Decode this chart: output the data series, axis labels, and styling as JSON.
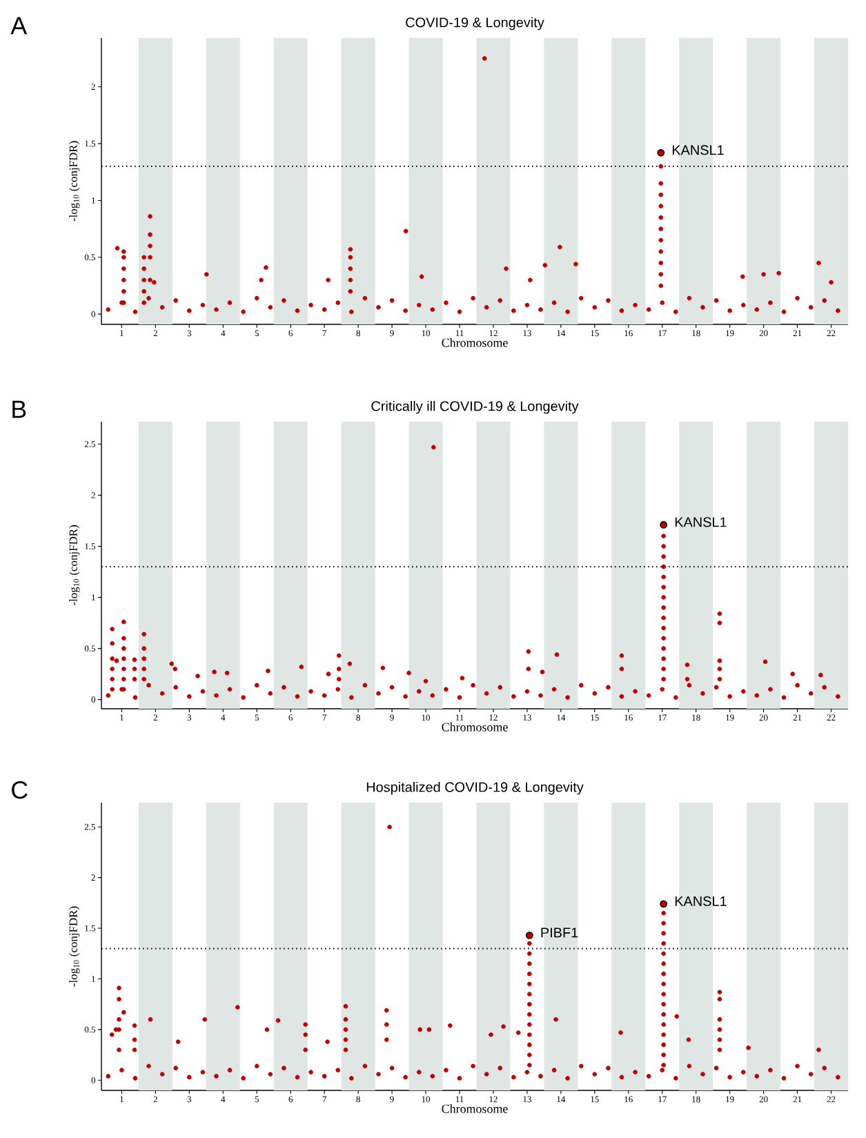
{
  "chart_data": [
    {
      "type": "scatter",
      "title": "COVID-19 & Longevity",
      "xlabel": "Chromosome",
      "ylabel": "-log$_{10}$ (conjFDR)",
      "marker": "circle",
      "xlim": [
        0.4,
        22.5
      ],
      "ylim": [
        -0.09,
        2.43
      ],
      "xticks": [
        1,
        2,
        3,
        4,
        5,
        6,
        7,
        8,
        9,
        10,
        11,
        12,
        13,
        14,
        15,
        16,
        17,
        18,
        19,
        20,
        21,
        22
      ],
      "yticks": [
        0,
        0.5,
        1,
        1.5,
        2
      ],
      "bands": [
        {
          "axis": "x",
          "from": 1.5,
          "to": 2.5,
          "color": "#e0e6e4"
        },
        {
          "axis": "x",
          "from": 3.5,
          "to": 4.5,
          "color": "#e0e6e4"
        },
        {
          "axis": "x",
          "from": 5.5,
          "to": 6.5,
          "color": "#e0e6e4"
        },
        {
          "axis": "x",
          "from": 7.5,
          "to": 8.5,
          "color": "#e0e6e4"
        },
        {
          "axis": "x",
          "from": 9.5,
          "to": 10.5,
          "color": "#e0e6e4"
        },
        {
          "axis": "x",
          "from": 11.5,
          "to": 12.5,
          "color": "#e0e6e4"
        },
        {
          "axis": "x",
          "from": 13.5,
          "to": 14.5,
          "color": "#e0e6e4"
        },
        {
          "axis": "x",
          "from": 15.5,
          "to": 16.5,
          "color": "#e0e6e4"
        },
        {
          "axis": "x",
          "from": 17.5,
          "to": 18.5,
          "color": "#e0e6e4"
        },
        {
          "axis": "x",
          "from": 19.5,
          "to": 20.5,
          "color": "#e0e6e4"
        },
        {
          "axis": "x",
          "from": 21.5,
          "to": 22.5,
          "color": "#e0e6e4"
        }
      ],
      "ref_lines": [
        {
          "axis": "y",
          "value": 1.3,
          "line_style": "dotted",
          "color": "#000000"
        }
      ],
      "annotations": [
        "A",
        {
          "text": "KANSL1",
          "x": 16.96,
          "y": 1.42
        }
      ],
      "series": [
        {
          "color": "#c00000",
          "x": [
            0.6,
            1,
            1.4,
            1.8,
            2.2,
            2.6,
            3,
            3.4,
            3.8,
            4.2,
            4.6,
            5,
            5.4,
            5.8,
            6.2,
            6.6,
            7,
            7.4,
            7.8,
            8.2,
            8.6,
            9,
            9.4,
            9.8,
            10.2,
            10.6,
            11,
            11.4,
            11.8,
            12.2,
            12.6,
            13,
            13.4,
            13.8,
            14.2,
            14.6,
            15,
            15.4,
            15.8,
            16.2,
            16.6,
            17,
            17.4,
            17.8,
            18.2,
            18.6,
            19,
            19.4,
            19.8,
            20.2,
            20.6,
            21,
            21.4,
            21.8,
            22.2
          ],
          "values": [
            0.04,
            0.1,
            0.02,
            0.14,
            0.06,
            0.12,
            0.03,
            0.08,
            0.04,
            0.1,
            0.02,
            0.14,
            0.06,
            0.12,
            0.03,
            0.08,
            0.04,
            0.1,
            0.02,
            0.14,
            0.06,
            0.12,
            0.03,
            0.08,
            0.04,
            0.1,
            0.02,
            0.14,
            0.06,
            0.12,
            0.03,
            0.08,
            0.04,
            0.1,
            0.02,
            0.14,
            0.06,
            0.12,
            0.03,
            0.08,
            0.04,
            0.1,
            0.02,
            0.14,
            0.06,
            0.12,
            0.03,
            0.08,
            0.04,
            0.1,
            0.02,
            0.14,
            0.06,
            0.12,
            0.03
          ]
        },
        {
          "color": "#c00000",
          "x": [
            0.87,
            1.06,
            1.06,
            1.06,
            1.06,
            1.06,
            1.06,
            1.66,
            1.66,
            1.66,
            1.66,
            1.66,
            1.84,
            1.84,
            1.84,
            1.84,
            1.84,
            1.96,
            3.51,
            5.13,
            5.27,
            7.11,
            7.77,
            7.77,
            7.77,
            7.77,
            7.77,
            9.41,
            9.88,
            11.74,
            12.38,
            13.09,
            13.53,
            13.97,
            14.44,
            16.96,
            16.96,
            16.96,
            16.96,
            16.96,
            16.96,
            16.96,
            16.96,
            16.96,
            16.96,
            16.96,
            19.38,
            20,
            20.45,
            21.63,
            22
          ],
          "values": [
            0.58,
            0.1,
            0.2,
            0.3,
            0.4,
            0.5,
            0.55,
            0.1,
            0.2,
            0.3,
            0.4,
            0.5,
            0.3,
            0.5,
            0.6,
            0.7,
            0.86,
            0.28,
            0.35,
            0.3,
            0.41,
            0.3,
            0.2,
            0.3,
            0.4,
            0.5,
            0.57,
            0.73,
            0.33,
            2.25,
            0.4,
            0.3,
            0.43,
            0.59,
            0.44,
            1.3,
            1.15,
            1.05,
            0.95,
            0.85,
            0.75,
            0.65,
            0.55,
            0.45,
            0.35,
            0.25,
            0.33,
            0.35,
            0.36,
            0.45,
            0.28
          ]
        },
        {
          "color": "#c00000",
          "x": [
            16.96
          ],
          "values": [
            1.42
          ]
        }
      ]
    },
    {
      "type": "scatter",
      "title": "Critically ill COVID-19 & Longevity",
      "xlabel": "Chromosome",
      "ylabel": "-log$_{10}$ (conjFDR)",
      "marker": "circle",
      "xlim": [
        0.4,
        22.5
      ],
      "ylim": [
        -0.09,
        2.72
      ],
      "xticks": [
        1,
        2,
        3,
        4,
        5,
        6,
        7,
        8,
        9,
        10,
        11,
        12,
        13,
        14,
        15,
        16,
        17,
        18,
        19,
        20,
        21,
        22
      ],
      "yticks": [
        0,
        0.5,
        1,
        1.5,
        2,
        2.5
      ],
      "bands": [
        {
          "axis": "x",
          "from": 1.5,
          "to": 2.5,
          "color": "#e0e6e4"
        },
        {
          "axis": "x",
          "from": 3.5,
          "to": 4.5,
          "color": "#e0e6e4"
        },
        {
          "axis": "x",
          "from": 5.5,
          "to": 6.5,
          "color": "#e0e6e4"
        },
        {
          "axis": "x",
          "from": 7.5,
          "to": 8.5,
          "color": "#e0e6e4"
        },
        {
          "axis": "x",
          "from": 9.5,
          "to": 10.5,
          "color": "#e0e6e4"
        },
        {
          "axis": "x",
          "from": 11.5,
          "to": 12.5,
          "color": "#e0e6e4"
        },
        {
          "axis": "x",
          "from": 13.5,
          "to": 14.5,
          "color": "#e0e6e4"
        },
        {
          "axis": "x",
          "from": 15.5,
          "to": 16.5,
          "color": "#e0e6e4"
        },
        {
          "axis": "x",
          "from": 17.5,
          "to": 18.5,
          "color": "#e0e6e4"
        },
        {
          "axis": "x",
          "from": 19.5,
          "to": 20.5,
          "color": "#e0e6e4"
        },
        {
          "axis": "x",
          "from": 21.5,
          "to": 22.5,
          "color": "#e0e6e4"
        }
      ],
      "ref_lines": [
        {
          "axis": "y",
          "value": 1.3,
          "line_style": "dotted",
          "color": "#000000"
        }
      ],
      "annotations": [
        "B",
        {
          "text": "KANSL1",
          "x": 17.04,
          "y": 1.71
        }
      ],
      "series": [
        {
          "color": "#c00000",
          "x": [
            0.6,
            1,
            1.4,
            1.8,
            2.2,
            2.6,
            3,
            3.4,
            3.8,
            4.2,
            4.6,
            5,
            5.4,
            5.8,
            6.2,
            6.6,
            7,
            7.4,
            7.8,
            8.2,
            8.6,
            9,
            9.4,
            9.8,
            10.2,
            10.6,
            11,
            11.4,
            11.8,
            12.2,
            12.6,
            13,
            13.4,
            13.8,
            14.2,
            14.6,
            15,
            15.4,
            15.8,
            16.2,
            16.6,
            17,
            17.4,
            17.8,
            18.2,
            18.6,
            19,
            19.4,
            19.8,
            20.2,
            20.6,
            21,
            21.4,
            21.8,
            22.2
          ],
          "values": [
            0.04,
            0.1,
            0.02,
            0.14,
            0.06,
            0.12,
            0.03,
            0.08,
            0.04,
            0.1,
            0.02,
            0.14,
            0.06,
            0.12,
            0.03,
            0.08,
            0.04,
            0.1,
            0.02,
            0.14,
            0.06,
            0.12,
            0.03,
            0.08,
            0.04,
            0.1,
            0.02,
            0.14,
            0.06,
            0.12,
            0.03,
            0.08,
            0.04,
            0.1,
            0.02,
            0.14,
            0.06,
            0.12,
            0.03,
            0.08,
            0.04,
            0.1,
            0.02,
            0.14,
            0.06,
            0.12,
            0.03,
            0.08,
            0.04,
            0.1,
            0.02,
            0.14,
            0.06,
            0.12,
            0.03
          ]
        },
        {
          "color": "#c00000",
          "x": [
            0.72,
            0.72,
            0.72,
            0.72,
            0.72,
            0.72,
            0.85,
            1.06,
            1.06,
            1.06,
            1.06,
            1.06,
            1.06,
            1.06,
            1.38,
            1.38,
            1.38,
            1.66,
            1.66,
            1.66,
            1.66,
            1.66,
            2.48,
            2.58,
            3.25,
            3.74,
            4.12,
            5.33,
            6.32,
            7.12,
            7.43,
            7.43,
            7.43,
            7.75,
            8.73,
            9.5,
            10,
            10.23,
            11.08,
            13.04,
            13.04,
            13.45,
            13.88,
            15.8,
            15.8,
            17.04,
            17.04,
            17.04,
            17.04,
            17.04,
            17.04,
            17.04,
            17.04,
            17.04,
            17.04,
            17.04,
            17.04,
            17.04,
            17.04,
            17.04,
            17.74,
            17.74,
            18.7,
            18.7,
            18.7,
            18.7,
            18.7,
            20.05,
            20.86,
            21.69
          ],
          "values": [
            0.1,
            0.2,
            0.3,
            0.4,
            0.55,
            0.69,
            0.38,
            0.1,
            0.2,
            0.3,
            0.4,
            0.5,
            0.6,
            0.76,
            0.2,
            0.3,
            0.39,
            0.2,
            0.3,
            0.4,
            0.5,
            0.64,
            0.35,
            0.3,
            0.23,
            0.27,
            0.26,
            0.28,
            0.32,
            0.25,
            0.2,
            0.3,
            0.43,
            0.35,
            0.31,
            0.26,
            0.18,
            2.47,
            0.21,
            0.3,
            0.47,
            0.27,
            0.44,
            0.3,
            0.43,
            1.6,
            1.5,
            1.4,
            1.3,
            1.2,
            1.1,
            1.0,
            0.9,
            0.8,
            0.7,
            0.6,
            0.5,
            0.4,
            0.3,
            0.2,
            0.2,
            0.34,
            0.2,
            0.3,
            0.38,
            0.75,
            0.84,
            0.37,
            0.25,
            0.24
          ]
        },
        {
          "color": "#c00000",
          "x": [
            17.04
          ],
          "values": [
            1.71
          ]
        }
      ]
    },
    {
      "type": "scatter",
      "title": "Hospitalized COVID-19 & Longevity",
      "xlabel": "Chromosome",
      "ylabel": "-log$_{10}$ (conjFDR)",
      "marker": "circle",
      "xlim": [
        0.4,
        22.5
      ],
      "ylim": [
        -0.1,
        2.74
      ],
      "xticks": [
        1,
        2,
        3,
        4,
        5,
        6,
        7,
        8,
        9,
        10,
        11,
        12,
        13,
        14,
        15,
        16,
        17,
        18,
        19,
        20,
        21,
        22
      ],
      "yticks": [
        0,
        0.5,
        1,
        1.5,
        2,
        2.5
      ],
      "bands": [
        {
          "axis": "x",
          "from": 1.5,
          "to": 2.5,
          "color": "#e0e6e4"
        },
        {
          "axis": "x",
          "from": 3.5,
          "to": 4.5,
          "color": "#e0e6e4"
        },
        {
          "axis": "x",
          "from": 5.5,
          "to": 6.5,
          "color": "#e0e6e4"
        },
        {
          "axis": "x",
          "from": 7.5,
          "to": 8.5,
          "color": "#e0e6e4"
        },
        {
          "axis": "x",
          "from": 9.5,
          "to": 10.5,
          "color": "#e0e6e4"
        },
        {
          "axis": "x",
          "from": 11.5,
          "to": 12.5,
          "color": "#e0e6e4"
        },
        {
          "axis": "x",
          "from": 13.5,
          "to": 14.5,
          "color": "#e0e6e4"
        },
        {
          "axis": "x",
          "from": 15.5,
          "to": 16.5,
          "color": "#e0e6e4"
        },
        {
          "axis": "x",
          "from": 17.5,
          "to": 18.5,
          "color": "#e0e6e4"
        },
        {
          "axis": "x",
          "from": 19.5,
          "to": 20.5,
          "color": "#e0e6e4"
        },
        {
          "axis": "x",
          "from": 21.5,
          "to": 22.5,
          "color": "#e0e6e4"
        }
      ],
      "ref_lines": [
        {
          "axis": "y",
          "value": 1.3,
          "line_style": "dotted",
          "color": "#000000"
        }
      ],
      "annotations": [
        "C",
        {
          "text": "PIBF1",
          "x": 13.07,
          "y": 1.43
        },
        {
          "text": "KANSL1",
          "x": 17.04,
          "y": 1.74
        }
      ],
      "series": [
        {
          "color": "#c00000",
          "x": [
            0.6,
            1,
            1.4,
            1.8,
            2.2,
            2.6,
            3,
            3.4,
            3.8,
            4.2,
            4.6,
            5,
            5.4,
            5.8,
            6.2,
            6.6,
            7,
            7.4,
            7.8,
            8.2,
            8.6,
            9,
            9.4,
            9.8,
            10.2,
            10.6,
            11,
            11.4,
            11.8,
            12.2,
            12.6,
            13,
            13.4,
            13.8,
            14.2,
            14.6,
            15,
            15.4,
            15.8,
            16.2,
            16.6,
            17,
            17.4,
            17.8,
            18.2,
            18.6,
            19,
            19.4,
            19.8,
            20.2,
            20.6,
            21,
            21.4,
            21.8,
            22.2
          ],
          "values": [
            0.04,
            0.1,
            0.02,
            0.14,
            0.06,
            0.12,
            0.03,
            0.08,
            0.04,
            0.1,
            0.02,
            0.14,
            0.06,
            0.12,
            0.03,
            0.08,
            0.04,
            0.1,
            0.02,
            0.14,
            0.06,
            0.12,
            0.03,
            0.08,
            0.04,
            0.1,
            0.02,
            0.14,
            0.06,
            0.12,
            0.03,
            0.08,
            0.04,
            0.1,
            0.02,
            0.14,
            0.06,
            0.12,
            0.03,
            0.08,
            0.04,
            0.1,
            0.02,
            0.14,
            0.06,
            0.12,
            0.03,
            0.08,
            0.04,
            0.1,
            0.02,
            0.14,
            0.06,
            0.12,
            0.03
          ]
        },
        {
          "color": "#c00000",
          "x": [
            0.71,
            0.83,
            0.92,
            0.92,
            0.92,
            0.92,
            0.92,
            1.06,
            1.38,
            1.38,
            1.38,
            1.85,
            2.67,
            3.46,
            4.43,
            5.3,
            5.63,
            6.44,
            6.44,
            6.44,
            7.09,
            7.63,
            7.63,
            7.63,
            7.63,
            7.63,
            8.84,
            8.84,
            8.84,
            8.93,
            9.83,
            10.1,
            10.72,
            11.93,
            12.3,
            12.74,
            13.07,
            13.07,
            13.07,
            13.07,
            13.07,
            13.07,
            13.07,
            13.07,
            13.07,
            13.07,
            13.07,
            13.07,
            13.07,
            13.85,
            15.77,
            17.04,
            17.04,
            17.04,
            17.04,
            17.04,
            17.04,
            17.04,
            17.04,
            17.04,
            17.04,
            17.04,
            17.04,
            17.04,
            17.04,
            17.04,
            17.04,
            17.43,
            17.78,
            18.7,
            18.7,
            18.7,
            18.7,
            18.7,
            18.7,
            19.55,
            21.63
          ],
          "values": [
            0.45,
            0.5,
            0.3,
            0.5,
            0.6,
            0.8,
            0.91,
            0.67,
            0.3,
            0.4,
            0.54,
            0.6,
            0.38,
            0.6,
            0.72,
            0.5,
            0.59,
            0.3,
            0.45,
            0.55,
            0.38,
            0.3,
            0.4,
            0.5,
            0.6,
            0.73,
            0.4,
            0.55,
            0.69,
            2.5,
            0.5,
            0.5,
            0.54,
            0.45,
            0.53,
            0.47,
            1.35,
            1.25,
            1.15,
            1.05,
            0.95,
            0.85,
            0.75,
            0.65,
            0.55,
            0.45,
            0.35,
            0.25,
            0.15,
            0.6,
            0.47,
            1.65,
            1.55,
            1.45,
            1.35,
            1.25,
            1.15,
            1.05,
            0.95,
            0.85,
            0.75,
            0.65,
            0.55,
            0.45,
            0.35,
            0.25,
            0.15,
            0.63,
            0.4,
            0.3,
            0.4,
            0.5,
            0.6,
            0.8,
            0.87,
            0.32,
            0.3
          ]
        },
        {
          "color": "#c00000",
          "x": [
            13.07,
            17.04
          ],
          "values": [
            1.43,
            1.74
          ]
        }
      ]
    }
  ]
}
